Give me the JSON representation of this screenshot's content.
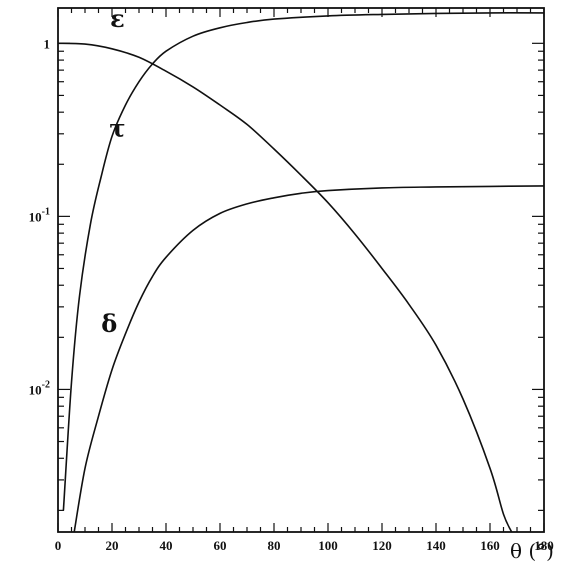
{
  "chart_data": {
    "type": "line",
    "title": "",
    "xlabel": "θ (°)",
    "ylabel": "",
    "xlim": [
      0,
      180
    ],
    "ylim": [
      0.0015,
      1.6
    ],
    "yscale": "log",
    "grid": false,
    "x_ticks": [
      0,
      20,
      40,
      60,
      80,
      100,
      120,
      140,
      160,
      180
    ],
    "x_tick_labels": [
      "0",
      "20",
      "40",
      "60",
      "80",
      "100",
      "120",
      "140",
      "160",
      "180"
    ],
    "y_ticks": [
      1,
      0.1,
      0.01
    ],
    "y_tick_labels": [
      {
        "base": "1",
        "exp": ""
      },
      {
        "base": "10",
        "exp": "-1"
      },
      {
        "base": "10",
        "exp": "-2"
      }
    ],
    "series": [
      {
        "name": "ε",
        "x": [
          0,
          10,
          20,
          30,
          40,
          50,
          60,
          70,
          80,
          90,
          100,
          110,
          120,
          130,
          140,
          150,
          160,
          165,
          168
        ],
        "y": [
          1.0,
          0.99,
          0.93,
          0.83,
          0.69,
          0.56,
          0.44,
          0.34,
          0.245,
          0.173,
          0.12,
          0.079,
          0.05,
          0.031,
          0.018,
          0.0088,
          0.0035,
          0.0019,
          0.0015
        ]
      },
      {
        "name": "τ",
        "x": [
          2,
          5,
          8,
          12,
          16,
          20,
          25,
          30,
          35,
          40,
          50,
          60,
          70,
          80,
          100,
          120,
          140,
          160,
          180
        ],
        "y": [
          0.002,
          0.011,
          0.035,
          0.09,
          0.17,
          0.29,
          0.44,
          0.6,
          0.76,
          0.9,
          1.1,
          1.23,
          1.32,
          1.38,
          1.44,
          1.47,
          1.49,
          1.5,
          1.5
        ]
      },
      {
        "name": "δ",
        "x": [
          6,
          10,
          15,
          20,
          25,
          30,
          35,
          40,
          50,
          60,
          70,
          80,
          90,
          100,
          120,
          140,
          160,
          180
        ],
        "y": [
          0.0015,
          0.0035,
          0.007,
          0.013,
          0.021,
          0.032,
          0.045,
          0.058,
          0.083,
          0.104,
          0.118,
          0.128,
          0.136,
          0.141,
          0.146,
          0.148,
          0.149,
          0.15
        ]
      }
    ]
  }
}
